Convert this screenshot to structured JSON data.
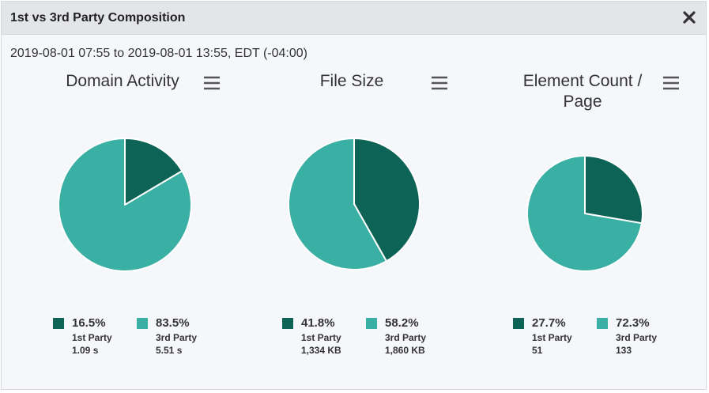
{
  "header": {
    "title": "1st vs 3rd Party Composition",
    "close_icon": "close-icon"
  },
  "range": "2019-08-01 07:55 to 2019-08-01 13:55, EDT (-04:00)",
  "colors": {
    "first_party": "#0e6357",
    "third_party": "#3aafa3"
  },
  "charts": [
    {
      "title": "Domain Activity",
      "legend": [
        {
          "pct": "16.5%",
          "label": "1st Party",
          "value": "1.09 s"
        },
        {
          "pct": "83.5%",
          "label": "3rd Party",
          "value": "5.51 s"
        }
      ]
    },
    {
      "title": "File Size",
      "legend": [
        {
          "pct": "41.8%",
          "label": "1st Party",
          "value": "1,334 KB"
        },
        {
          "pct": "58.2%",
          "label": "3rd Party",
          "value": "1,860 KB"
        }
      ]
    },
    {
      "title": "Element Count / Page",
      "legend": [
        {
          "pct": "27.7%",
          "label": "1st Party",
          "value": "51"
        },
        {
          "pct": "72.3%",
          "label": "3rd Party",
          "value": "133"
        }
      ]
    }
  ],
  "chart_data": [
    {
      "type": "pie",
      "title": "Domain Activity",
      "categories": [
        "1st Party",
        "3rd Party"
      ],
      "values": [
        16.5,
        83.5
      ]
    },
    {
      "type": "pie",
      "title": "File Size",
      "categories": [
        "1st Party",
        "3rd Party"
      ],
      "values": [
        41.8,
        58.2
      ]
    },
    {
      "type": "pie",
      "title": "Element Count / Page",
      "categories": [
        "1st Party",
        "3rd Party"
      ],
      "values": [
        27.7,
        72.3
      ]
    }
  ]
}
